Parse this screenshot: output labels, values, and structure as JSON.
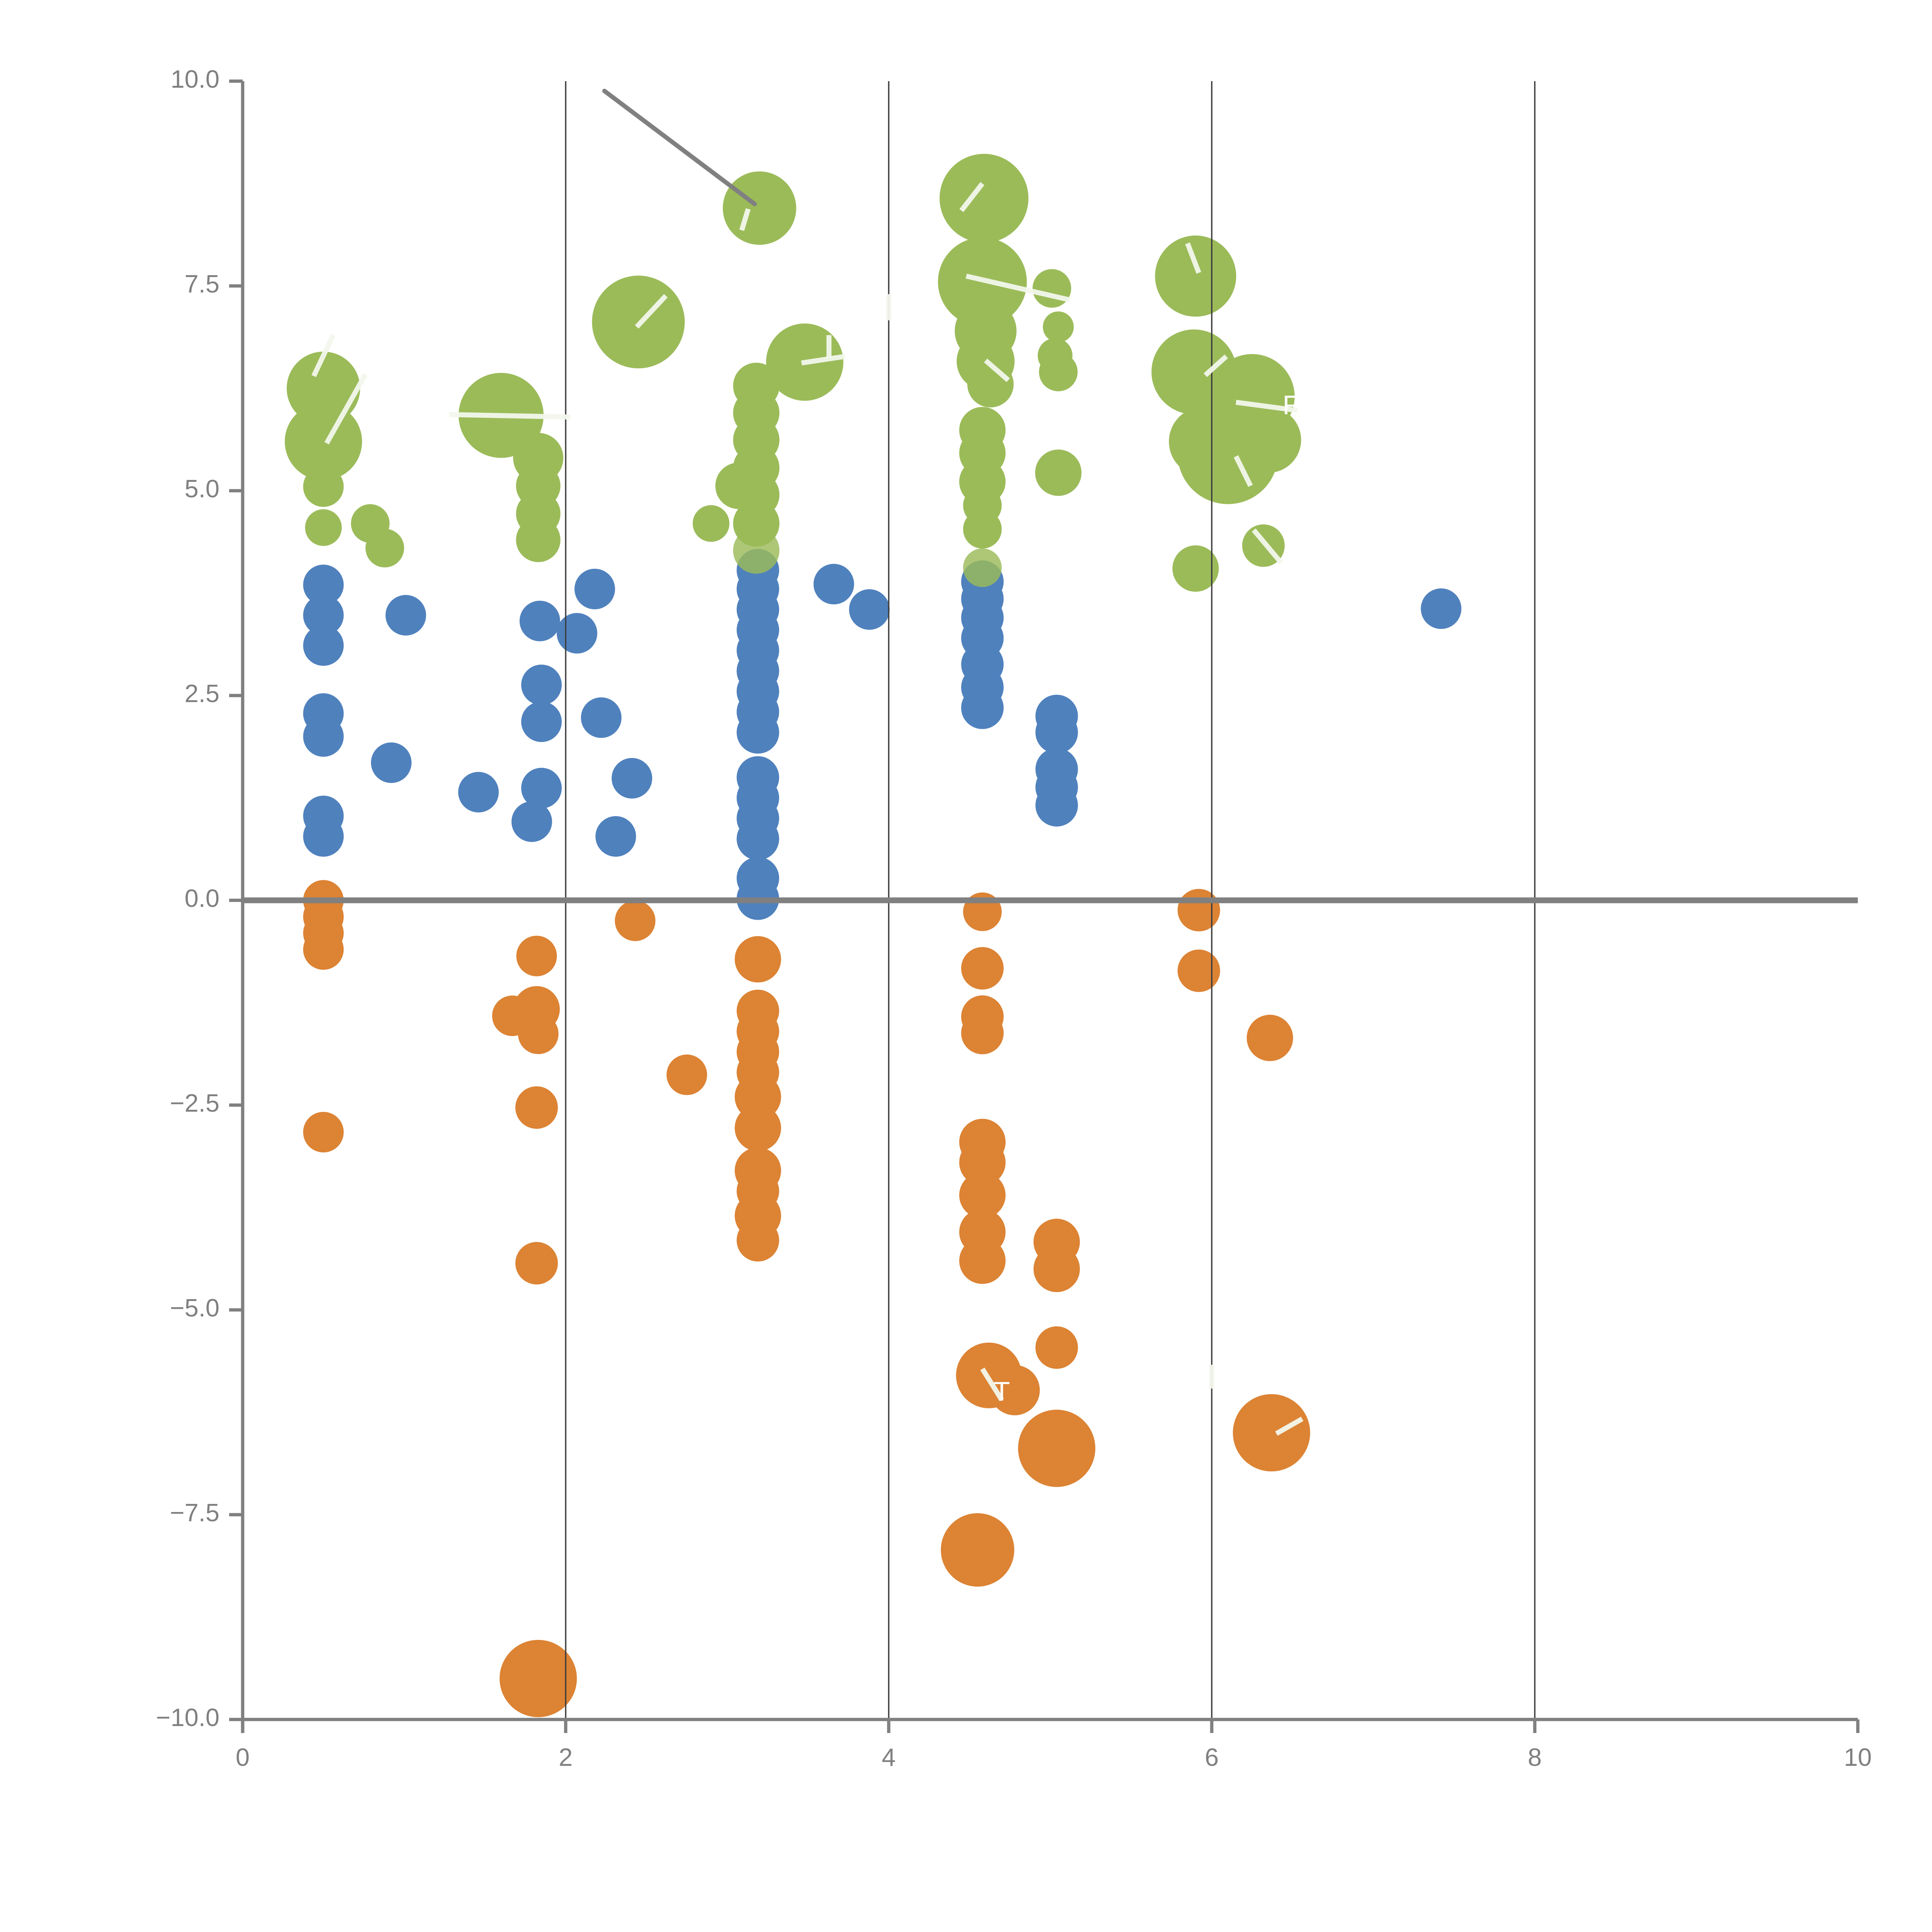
{
  "chart_data": {
    "type": "scatter",
    "title": "",
    "xlabel": "",
    "ylabel": "",
    "xlim": [
      0,
      10
    ],
    "ylim": [
      -10,
      10
    ],
    "grid": "vertical-only",
    "legend": "none",
    "x_tick_labels": [
      "0",
      "2",
      "4",
      "6",
      "8",
      "10"
    ],
    "x_tick_values": [
      0,
      2,
      4,
      6,
      8,
      10
    ],
    "y_tick_labels": [
      "10.0",
      "7.5",
      "5.0",
      "2.5",
      "0.0",
      "−2.5",
      "−5.0",
      "−7.5",
      "−10.0"
    ],
    "y_tick_values": [
      10,
      7.5,
      5,
      2.5,
      0,
      -2.5,
      -5,
      -7.5,
      -10
    ],
    "gridline_x_values": [
      2,
      4,
      6,
      8
    ],
    "zero_rule_y": 0,
    "colors": {
      "green": "#9BBB59",
      "blue": "#4F81BD",
      "orange": "#DC8334",
      "axis": "#808080",
      "tick_label": "#808080",
      "gridline": "#3d3d3d",
      "zero_rule": "#808080",
      "annotation": "#808080",
      "white_mark": "#f2f7ec"
    },
    "series": [
      {
        "name": "blue",
        "color": "#4F81BD",
        "points": [
          [
            0.5,
            3.85,
            10.5
          ],
          [
            0.5,
            3.48,
            10.5
          ],
          [
            0.5,
            3.11,
            10.5
          ],
          [
            0.5,
            2.28,
            10.5
          ],
          [
            0.5,
            2.0,
            10.5
          ],
          [
            0.5,
            1.03,
            10.5
          ],
          [
            0.5,
            0.78,
            10.5
          ],
          [
            1.01,
            3.48,
            10.5
          ],
          [
            0.92,
            1.68,
            10.5
          ],
          [
            1.46,
            1.32,
            10.5
          ],
          [
            1.84,
            3.41,
            10.5
          ],
          [
            2.07,
            3.26,
            10.5
          ],
          [
            2.18,
            3.8,
            10.5
          ],
          [
            1.85,
            2.63,
            10.5
          ],
          [
            1.85,
            2.18,
            10.5
          ],
          [
            2.22,
            2.23,
            10.5
          ],
          [
            1.85,
            1.37,
            10.5
          ],
          [
            1.79,
            0.96,
            10.5
          ],
          [
            2.31,
            0.78,
            10.5
          ],
          [
            2.41,
            1.49,
            10.5
          ],
          [
            3.19,
            4.03,
            11
          ],
          [
            3.19,
            3.8,
            11
          ],
          [
            3.19,
            3.55,
            11
          ],
          [
            3.19,
            3.3,
            11
          ],
          [
            3.19,
            3.05,
            11
          ],
          [
            3.19,
            2.8,
            11
          ],
          [
            3.19,
            2.55,
            11
          ],
          [
            3.19,
            2.3,
            11
          ],
          [
            3.19,
            2.05,
            11
          ],
          [
            3.19,
            1.5,
            11
          ],
          [
            3.19,
            1.25,
            11
          ],
          [
            3.19,
            1.0,
            11
          ],
          [
            3.19,
            0.75,
            11
          ],
          [
            3.19,
            0.27,
            11
          ],
          [
            3.19,
            0.02,
            11
          ],
          [
            3.66,
            3.86,
            10.5
          ],
          [
            3.88,
            3.55,
            10.5
          ],
          [
            4.58,
            3.89,
            11
          ],
          [
            4.58,
            3.68,
            11
          ],
          [
            4.58,
            3.45,
            11
          ],
          [
            4.58,
            3.2,
            11
          ],
          [
            4.58,
            2.88,
            11
          ],
          [
            4.58,
            2.6,
            11
          ],
          [
            4.58,
            2.35,
            11
          ],
          [
            5.04,
            2.25,
            11
          ],
          [
            5.04,
            2.05,
            11
          ],
          [
            5.04,
            1.6,
            11
          ],
          [
            5.04,
            1.38,
            11
          ],
          [
            5.04,
            1.16,
            11
          ],
          [
            7.42,
            3.56,
            10.5
          ]
        ]
      },
      {
        "name": "orange",
        "color": "#DC8334",
        "points": [
          [
            0.5,
            0.0,
            10.5
          ],
          [
            0.5,
            -0.2,
            10.5
          ],
          [
            0.5,
            -0.4,
            10.5
          ],
          [
            0.5,
            -0.6,
            10.5
          ],
          [
            0.5,
            -2.83,
            10.5
          ],
          [
            1.82,
            -0.68,
            10.5
          ],
          [
            1.82,
            -1.33,
            12
          ],
          [
            1.67,
            -1.41,
            10.5
          ],
          [
            1.83,
            -1.63,
            10.5
          ],
          [
            1.82,
            -2.53,
            11
          ],
          [
            1.82,
            -4.43,
            11
          ],
          [
            2.43,
            -0.25,
            10.5
          ],
          [
            2.75,
            -2.13,
            10.5
          ],
          [
            3.19,
            -0.72,
            12
          ],
          [
            3.19,
            -1.35,
            11
          ],
          [
            3.19,
            -1.6,
            11
          ],
          [
            3.19,
            -1.85,
            11
          ],
          [
            3.19,
            -2.1,
            11
          ],
          [
            3.19,
            -2.4,
            12
          ],
          [
            3.19,
            -2.78,
            12
          ],
          [
            3.19,
            -3.3,
            12
          ],
          [
            3.19,
            -3.55,
            11
          ],
          [
            3.19,
            -3.85,
            12
          ],
          [
            3.19,
            -4.15,
            11
          ],
          [
            4.58,
            -0.14,
            10
          ],
          [
            4.58,
            -0.83,
            11
          ],
          [
            4.58,
            -1.42,
            11
          ],
          [
            4.58,
            -1.62,
            11
          ],
          [
            4.58,
            -2.95,
            12
          ],
          [
            4.58,
            -3.2,
            12
          ],
          [
            4.58,
            -3.6,
            12
          ],
          [
            4.58,
            -4.05,
            12
          ],
          [
            4.58,
            -4.4,
            12
          ],
          [
            5.04,
            -4.17,
            12
          ],
          [
            5.04,
            -4.5,
            12
          ],
          [
            5.04,
            -5.46,
            11
          ],
          [
            5.04,
            -6.69,
            20
          ],
          [
            4.62,
            -5.8,
            17
          ],
          [
            4.78,
            -5.98,
            13
          ],
          [
            4.55,
            -7.93,
            19
          ],
          [
            5.92,
            -0.12,
            11
          ],
          [
            5.92,
            -0.86,
            11
          ],
          [
            6.36,
            -1.68,
            12
          ],
          [
            6.37,
            -6.5,
            20
          ],
          [
            1.83,
            -9.5,
            20
          ]
        ]
      },
      {
        "name": "green",
        "color": "#9BBB59",
        "points": [
          [
            0.5,
            6.25,
            19
          ],
          [
            0.5,
            5.6,
            20
          ],
          [
            0.5,
            5.05,
            10.5
          ],
          [
            0.5,
            4.55,
            9.5
          ],
          [
            0.79,
            4.6,
            10
          ],
          [
            0.88,
            4.3,
            10
          ],
          [
            1.6,
            5.92,
            22
          ],
          [
            1.83,
            5.4,
            13
          ],
          [
            1.83,
            5.06,
            11.5
          ],
          [
            1.83,
            4.72,
            11.5
          ],
          [
            1.83,
            4.4,
            11.5
          ],
          [
            2.45,
            7.06,
            24
          ],
          [
            2.9,
            4.6,
            9.5
          ],
          [
            3.07,
            5.06,
            12
          ],
          [
            3.18,
            6.28,
            12
          ],
          [
            3.18,
            5.95,
            12
          ],
          [
            3.18,
            5.62,
            12
          ],
          [
            3.18,
            5.28,
            12
          ],
          [
            3.18,
            4.95,
            12
          ],
          [
            3.18,
            4.6,
            12
          ],
          [
            3.18,
            4.27,
            12,
            0.82
          ],
          [
            3.48,
            6.57,
            20
          ],
          [
            3.2,
            8.45,
            19
          ],
          [
            4.59,
            8.57,
            23
          ],
          [
            4.58,
            7.55,
            23
          ],
          [
            5.01,
            7.47,
            10
          ],
          [
            4.6,
            6.95,
            16
          ],
          [
            4.6,
            6.58,
            15
          ],
          [
            4.63,
            6.3,
            12
          ],
          [
            4.58,
            5.74,
            12
          ],
          [
            4.58,
            5.46,
            12
          ],
          [
            4.58,
            5.11,
            12
          ],
          [
            4.58,
            4.82,
            10
          ],
          [
            4.58,
            4.53,
            10
          ],
          [
            4.58,
            4.06,
            10,
            0.82
          ],
          [
            5.05,
            7.0,
            8
          ],
          [
            5.03,
            6.65,
            9
          ],
          [
            5.05,
            6.45,
            10
          ],
          [
            5.05,
            5.22,
            12
          ],
          [
            5.9,
            7.62,
            21
          ],
          [
            5.89,
            6.45,
            22
          ],
          [
            6.25,
            6.15,
            22
          ],
          [
            6.1,
            5.45,
            26
          ],
          [
            5.95,
            5.6,
            18
          ],
          [
            6.35,
            5.62,
            17
          ],
          [
            6.32,
            4.33,
            11
          ],
          [
            5.9,
            4.05,
            12
          ]
        ]
      }
    ],
    "annotation_line": {
      "x1": 2.24,
      "y1": 9.88,
      "x2": 3.17,
      "y2": 8.5
    },
    "white_marks": [
      [
        0.44,
        6.4,
        0.56,
        6.9
      ],
      [
        0.52,
        5.58,
        0.76,
        6.42
      ],
      [
        1.28,
        5.93,
        2.03,
        5.9
      ],
      [
        2.44,
        7.0,
        2.62,
        7.38
      ],
      [
        3.46,
        6.56,
        3.73,
        6.64
      ],
      [
        3.63,
        6.62,
        3.63,
        6.9
      ],
      [
        4.0,
        7.08,
        4.0,
        7.4
      ],
      [
        4.45,
        8.42,
        4.58,
        8.75
      ],
      [
        4.48,
        7.62,
        5.12,
        7.33
      ],
      [
        4.6,
        6.59,
        4.74,
        6.35
      ],
      [
        5.85,
        8.02,
        5.92,
        7.66
      ],
      [
        5.96,
        6.41,
        6.09,
        6.64
      ],
      [
        6.15,
        6.08,
        6.53,
        5.98
      ],
      [
        6.15,
        5.42,
        6.24,
        5.06
      ],
      [
        6.26,
        4.52,
        6.43,
        4.12
      ],
      [
        4.58,
        -5.72,
        4.7,
        -6.1
      ],
      [
        6.4,
        -6.51,
        6.56,
        -6.33
      ],
      [
        6.0,
        -5.67,
        6.0,
        -5.96
      ],
      [
        3.09,
        8.18,
        3.13,
        8.44
      ]
    ],
    "white_glyphs": [
      {
        "char": "T",
        "x": 4.7,
        "y": -6.02
      },
      {
        "char": "F",
        "x": 6.49,
        "y": 6.02
      }
    ]
  }
}
